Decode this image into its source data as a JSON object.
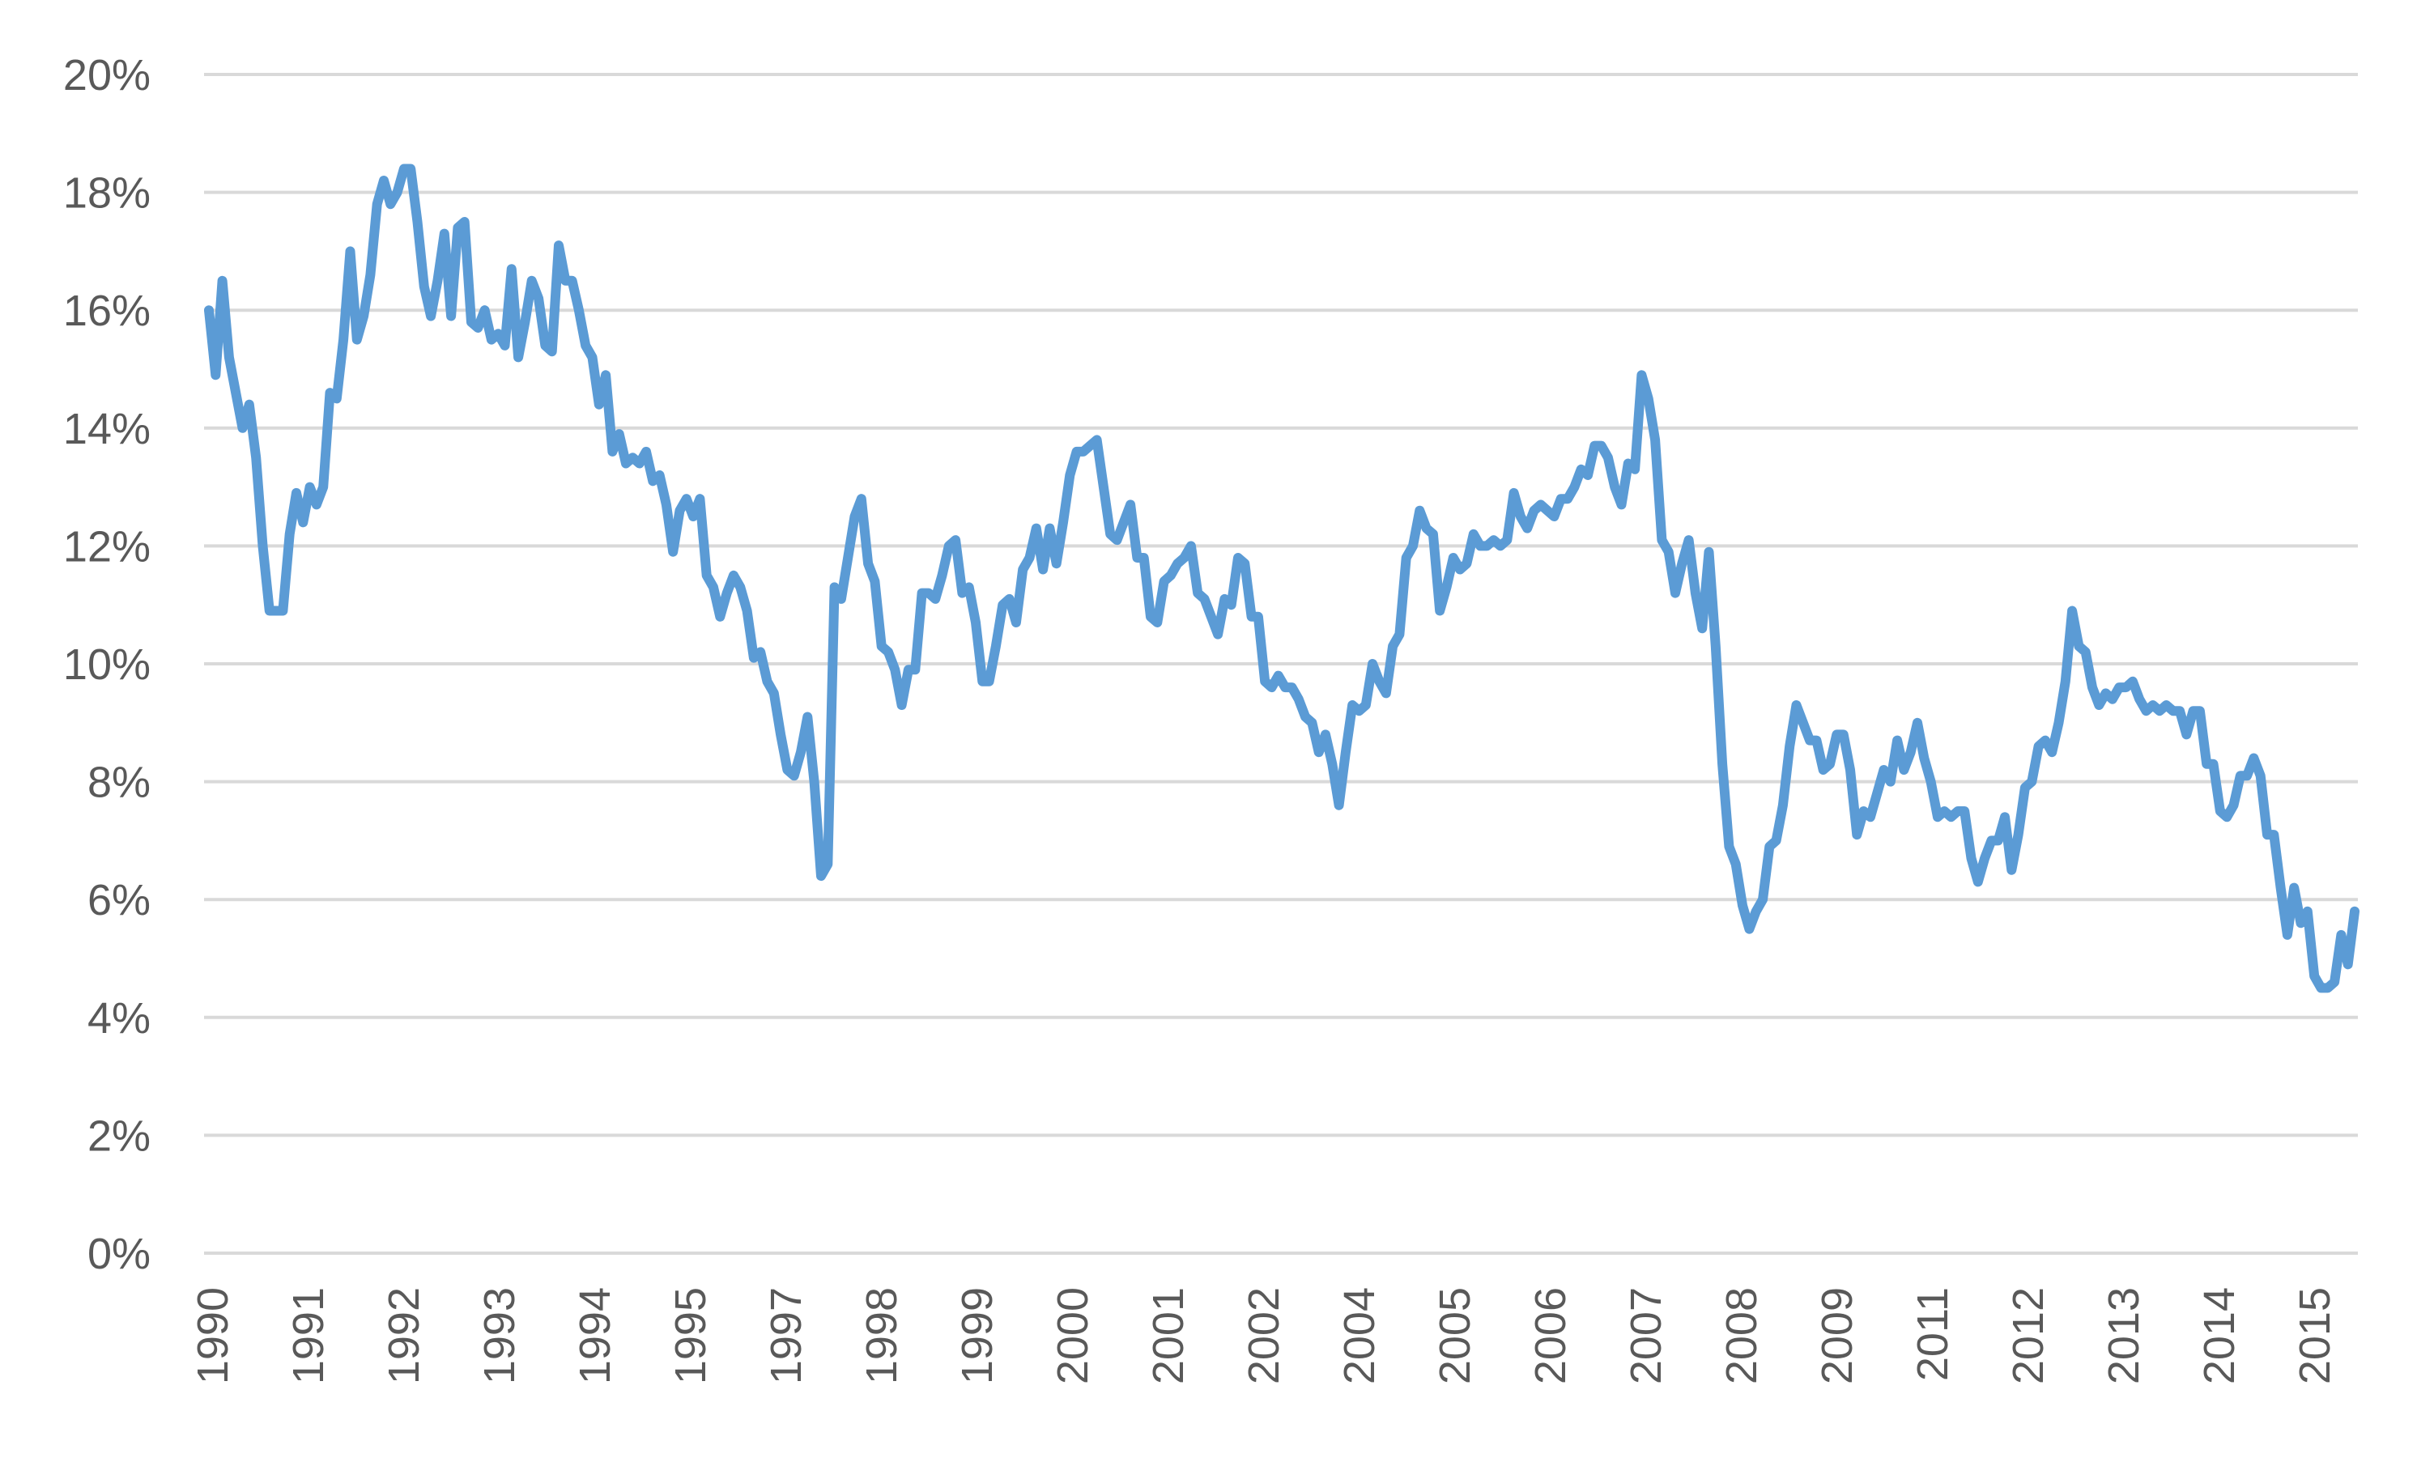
{
  "chart_data": {
    "type": "line",
    "title": "",
    "xlabel": "",
    "ylabel": "",
    "ylim": [
      0,
      20
    ],
    "y_ticks": [
      "0%",
      "2%",
      "4%",
      "6%",
      "8%",
      "10%",
      "12%",
      "14%",
      "16%",
      "18%",
      "20%"
    ],
    "x_tick_labels": [
      "1990",
      "1991",
      "1992",
      "1993",
      "1994",
      "1995",
      "1997",
      "1998",
      "1999",
      "2000",
      "2001",
      "2002",
      "2004",
      "2005",
      "2006",
      "2007",
      "2008",
      "2009",
      "2011",
      "2012",
      "2013",
      "2014",
      "2015"
    ],
    "x_label_orientation": "vertical",
    "grid": "horizontal",
    "legend": "none",
    "line_color": "#5B9BD5",
    "grid_color": "#D9D9D9",
    "series": [
      {
        "values": [
          16.0,
          14.9,
          16.5,
          15.2,
          14.6,
          14.0,
          14.4,
          13.5,
          12.0,
          10.9,
          10.9,
          10.9,
          12.2,
          12.9,
          12.4,
          13.0,
          12.7,
          13.0,
          14.6,
          14.5,
          15.5,
          17.0,
          15.5,
          15.9,
          16.6,
          17.8,
          18.2,
          17.8,
          18.0,
          18.4,
          18.4,
          17.5,
          16.4,
          15.9,
          16.5,
          17.3,
          15.9,
          17.4,
          17.5,
          15.8,
          15.7,
          16.0,
          15.5,
          15.6,
          15.4,
          16.7,
          15.2,
          15.8,
          16.5,
          16.2,
          15.4,
          15.3,
          17.1,
          16.5,
          16.5,
          16.0,
          15.4,
          15.2,
          14.4,
          14.9,
          13.6,
          13.9,
          13.4,
          13.5,
          13.4,
          13.6,
          13.1,
          13.2,
          12.7,
          11.9,
          12.6,
          12.8,
          12.5,
          12.8,
          11.5,
          11.3,
          10.8,
          11.2,
          11.5,
          11.3,
          10.9,
          10.1,
          10.2,
          9.7,
          9.5,
          8.8,
          8.2,
          8.1,
          8.5,
          9.1,
          8.0,
          6.4,
          6.6,
          11.3,
          11.1,
          11.8,
          12.5,
          12.8,
          11.7,
          11.4,
          10.3,
          10.2,
          9.9,
          9.3,
          9.9,
          9.9,
          11.2,
          11.2,
          11.1,
          11.5,
          12.0,
          12.1,
          11.2,
          11.3,
          10.7,
          9.7,
          9.7,
          10.3,
          11.0,
          11.1,
          10.7,
          11.6,
          11.8,
          12.3,
          11.6,
          12.3,
          11.7,
          12.4,
          13.2,
          13.6,
          13.6,
          13.7,
          13.8,
          13.0,
          12.2,
          12.1,
          12.4,
          12.7,
          11.8,
          11.8,
          10.8,
          10.7,
          11.4,
          11.5,
          11.7,
          11.8,
          12.0,
          11.2,
          11.1,
          10.8,
          10.5,
          11.1,
          11.0,
          11.8,
          11.7,
          10.8,
          10.8,
          9.7,
          9.6,
          9.8,
          9.6,
          9.6,
          9.4,
          9.1,
          9.0,
          8.5,
          8.8,
          8.3,
          7.6,
          8.5,
          9.3,
          9.2,
          9.3,
          10.0,
          9.7,
          9.5,
          10.3,
          10.5,
          11.8,
          12.0,
          12.6,
          12.3,
          12.2,
          10.9,
          11.3,
          11.8,
          11.6,
          11.7,
          12.2,
          12.0,
          12.0,
          12.1,
          12.0,
          12.1,
          12.9,
          12.5,
          12.3,
          12.6,
          12.7,
          12.6,
          12.5,
          12.8,
          12.8,
          13.0,
          13.3,
          13.2,
          13.7,
          13.7,
          13.5,
          13.0,
          12.7,
          13.4,
          13.3,
          14.9,
          14.5,
          13.8,
          12.1,
          11.9,
          11.2,
          11.7,
          12.1,
          11.2,
          10.6,
          11.9,
          10.3,
          8.3,
          6.9,
          6.6,
          5.9,
          5.5,
          5.8,
          6.0,
          6.9,
          7.0,
          7.6,
          8.6,
          9.3,
          9.0,
          8.7,
          8.7,
          8.2,
          8.3,
          8.8,
          8.8,
          8.2,
          7.1,
          7.5,
          7.4,
          7.8,
          8.2,
          8.0,
          8.7,
          8.2,
          8.5,
          9.0,
          8.4,
          8.0,
          7.4,
          7.5,
          7.4,
          7.5,
          7.5,
          6.7,
          6.3,
          6.7,
          7.0,
          7.0,
          7.4,
          6.5,
          7.1,
          7.9,
          8.0,
          8.6,
          8.7,
          8.5,
          9.0,
          9.7,
          10.9,
          10.3,
          10.2,
          9.6,
          9.3,
          9.5,
          9.4,
          9.6,
          9.6,
          9.7,
          9.4,
          9.2,
          9.3,
          9.2,
          9.3,
          9.2,
          9.2,
          8.8,
          9.2,
          9.2,
          8.3,
          8.3,
          7.5,
          7.4,
          7.6,
          8.1,
          8.1,
          8.4,
          8.1,
          7.1,
          7.1,
          6.2,
          5.4,
          6.2,
          5.6,
          5.8,
          4.7,
          4.5,
          4.5,
          4.6,
          5.4,
          4.9,
          5.8
        ]
      }
    ]
  }
}
